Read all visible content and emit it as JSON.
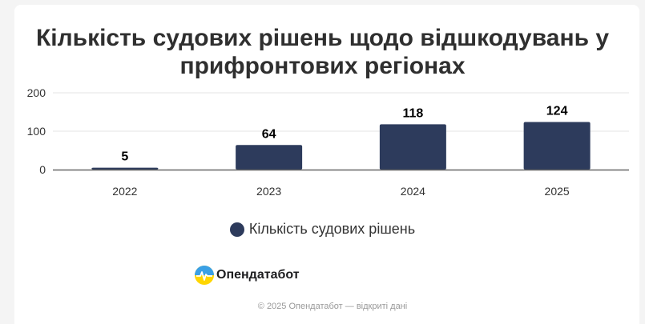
{
  "colors": {
    "bar": "#2d3b5c",
    "axis": "#666666",
    "grid": "#e6e6e6",
    "label": "#000000",
    "tick": "#333333"
  },
  "chart_data": {
    "type": "bar",
    "title": "Кількість судових рішень щодо відшкодувань у прифронтових регіонах",
    "title_lines": [
      "Кількість судових рішень щодо відшкодувань у",
      "прифронтових регіонах"
    ],
    "categories": [
      "2022",
      "2023",
      "2024",
      "2025"
    ],
    "series": [
      {
        "name": "Кількість судових рішень",
        "values": [
          5,
          64,
          118,
          124
        ]
      }
    ],
    "ylim": [
      0,
      200
    ],
    "yticks": [
      0,
      100,
      200
    ],
    "grid": true,
    "legend": "bottom-center",
    "xlabel": "",
    "ylabel": ""
  },
  "branding": {
    "logo_text": "Опендатабот"
  },
  "footer": {
    "text": "© 2025 Опендатабот — відкриті дані"
  }
}
